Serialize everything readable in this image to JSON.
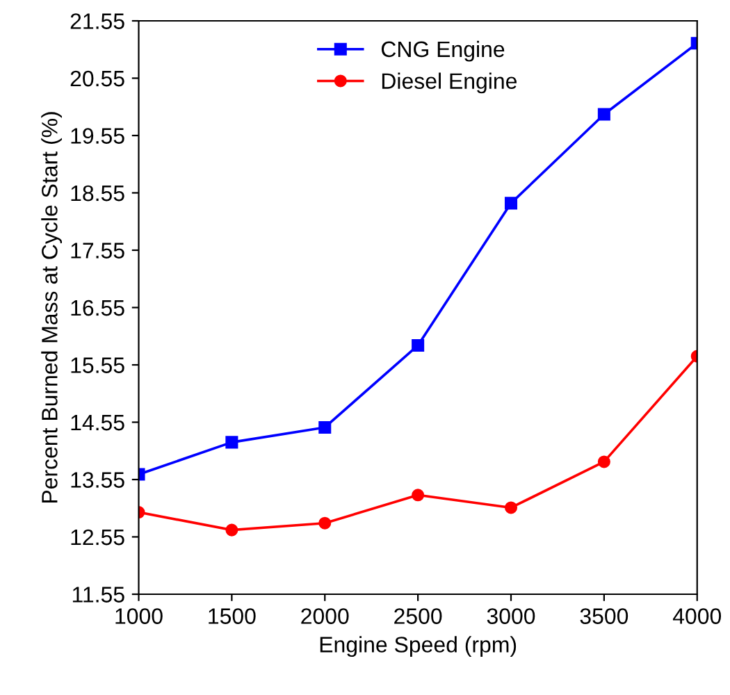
{
  "chart_data": {
    "type": "line",
    "xlabel": "Engine Speed (rpm)",
    "ylabel": "Percent Burned Mass at Cycle Start (%)",
    "x": [
      1000,
      1500,
      2000,
      2500,
      3000,
      3500,
      4000
    ],
    "series": [
      {
        "name": "CNG Engine",
        "color": "#0000ff",
        "marker": "square",
        "values": [
          13.64,
          14.2,
          14.46,
          15.89,
          18.37,
          19.92,
          21.16
        ]
      },
      {
        "name": "Diesel Engine",
        "color": "#ff0000",
        "marker": "circle",
        "values": [
          12.98,
          12.67,
          12.79,
          13.28,
          13.06,
          13.86,
          15.7
        ]
      }
    ],
    "xlim": [
      1000,
      4000
    ],
    "xticks": [
      1000,
      1500,
      2000,
      2500,
      3000,
      3500,
      4000
    ],
    "ylim": [
      11.55,
      21.55
    ],
    "yticks": [
      11.55,
      12.55,
      13.55,
      14.55,
      15.55,
      16.55,
      17.55,
      18.55,
      19.55,
      20.55,
      21.55
    ],
    "grid": false,
    "legend": "top",
    "line_style": "solid"
  }
}
